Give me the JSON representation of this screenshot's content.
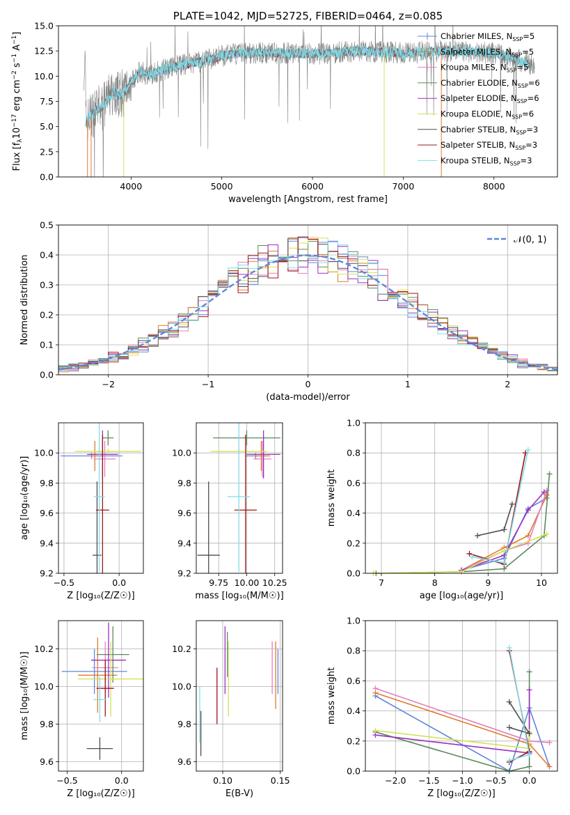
{
  "figure": {
    "title": "PLATE=1042, MJD=52725, FIBERID=0464, z=0.085"
  },
  "series": [
    {
      "name": "Chabrier MILES, N_SSP=5",
      "label_base": "Chabrier MILES, N",
      "label_sub": "SSP",
      "label_tail": "=5",
      "color": "#5f86dc"
    },
    {
      "name": "Salpeter MILES, N_SSP=5",
      "label_base": "Salpeter MILES, N",
      "label_sub": "SSP",
      "label_tail": "=5",
      "color": "#e07a2e"
    },
    {
      "name": "Kroupa MILES, N_SSP=5",
      "label_base": "Kroupa MILES, N",
      "label_sub": "SSP",
      "label_tail": "=5",
      "color": "#e57fbf"
    },
    {
      "name": "Chabrier ELODIE, N_SSP=6",
      "label_base": "Chabrier ELODIE, N",
      "label_sub": "SSP",
      "label_tail": "=6",
      "color": "#5a8a5a"
    },
    {
      "name": "Salpeter ELODIE, N_SSP=6",
      "label_base": "Salpeter ELODIE, N",
      "label_sub": "SSP",
      "label_tail": "=6",
      "color": "#9b2fc0"
    },
    {
      "name": "Kroupa ELODIE, N_SSP=6",
      "label_base": "Kroupa ELODIE, N",
      "label_sub": "SSP",
      "label_tail": "=6",
      "color": "#d4e157"
    },
    {
      "name": "Chabrier STELIB, N_SSP=3",
      "label_base": "Chabrier STELIB, N",
      "label_sub": "SSP",
      "label_tail": "=3",
      "color": "#4d4d4d"
    },
    {
      "name": "Salpeter STELIB, N_SSP=3",
      "label_base": "Salpeter STELIB, N",
      "label_sub": "SSP",
      "label_tail": "=3",
      "color": "#a01515"
    },
    {
      "name": "Kroupa STELIB, N_SSP=3",
      "label_base": "Kroupa STELIB, N",
      "label_sub": "SSP",
      "label_tail": "=3",
      "color": "#7fdde8"
    }
  ],
  "chart_data": [
    {
      "id": "spectrum",
      "type": "line",
      "title": "PLATE=1042, MJD=52725, FIBERID=0464, z=0.085",
      "xlabel": "wavelength [Angstrom, rest frame]",
      "ylabel_parts": {
        "a": "Flux [f",
        "sub": "λ",
        "b": "10",
        "sup1": "−17",
        "c": " erg cm",
        "sup2": "−2",
        "d": " s",
        "sup3": "−1",
        "e": " A",
        "sup4": "−1",
        "f": "]"
      },
      "xlim": [
        3200,
        8700
      ],
      "ylim": [
        0,
        15
      ],
      "xticks": [
        "4000",
        "5000",
        "6000",
        "7000",
        "8000"
      ],
      "yticks": [
        "0.0",
        "2.5",
        "5.0",
        "7.5",
        "10.0",
        "12.5",
        "15.0"
      ],
      "data_color": "#808080",
      "model_color": "#7fdde8",
      "envelope": {
        "x": [
          3500,
          3600,
          3700,
          3800,
          3900,
          4000,
          4100,
          4200,
          4300,
          4500,
          4800,
          5000,
          5200,
          5500,
          6000,
          6500,
          7000,
          7500,
          8000,
          8300,
          8500
        ],
        "y": [
          5.5,
          6.5,
          7.0,
          8.5,
          8.0,
          9.5,
          10.5,
          10.0,
          10.5,
          11.0,
          11.5,
          12.0,
          12.3,
          12.3,
          12.2,
          12.5,
          12.3,
          12.5,
          12.3,
          11.5,
          11.0
        ]
      },
      "legend_position": "upper right"
    },
    {
      "id": "residuals",
      "type": "histogram",
      "xlabel": "(data-model)/error",
      "ylabel": "Normed distribution",
      "xlim": [
        -2.5,
        2.5
      ],
      "ylim": [
        0,
        0.5
      ],
      "xticks": [
        "−2",
        "−1",
        "0",
        "1",
        "2"
      ],
      "yticks": [
        "0.0",
        "0.1",
        "0.2",
        "0.3",
        "0.4",
        "0.5"
      ],
      "bin_width": 0.1,
      "reference_label": "𝒩(0, 1)",
      "reference_color": "#5f86dc",
      "legend_position": "upper right"
    },
    {
      "id": "age-vs-Z",
      "type": "scatter",
      "xlabel": "Z [log₁₀(Z/Z☉)]",
      "ylabel": "age  [log₁₀(age/yr)]",
      "xlim": [
        -0.55,
        0.22
      ],
      "ylim": [
        9.2,
        10.2
      ],
      "xticks": [
        "−0.5",
        "0.0"
      ],
      "yticks": [
        "9.2",
        "9.4",
        "9.6",
        "9.8",
        "10.0"
      ],
      "points": [
        {
          "s": 0,
          "x": -0.25,
          "y": 9.98,
          "xerr": 0.28,
          "yerr": 0.02
        },
        {
          "s": 1,
          "x": -0.22,
          "y": 9.98,
          "xerr": 0.05,
          "yerr": 0.1
        },
        {
          "s": 2,
          "x": -0.13,
          "y": 9.96,
          "xerr": 0.1,
          "yerr": 0.12
        },
        {
          "s": 3,
          "x": -0.1,
          "y": 10.1,
          "xerr": 0.05,
          "yerr": 0.05
        },
        {
          "s": 4,
          "x": -0.15,
          "y": 9.99,
          "xerr": 0.14,
          "yerr": 0.16
        },
        {
          "s": 5,
          "x": -0.1,
          "y": 10.01,
          "xerr": 0.3,
          "yerr": 0.02
        },
        {
          "s": 6,
          "x": -0.2,
          "y": 9.32,
          "xerr": 0.04,
          "yerr": 0.49
        },
        {
          "s": 7,
          "x": -0.15,
          "y": 9.62,
          "xerr": 0.06,
          "yerr": 0.5
        },
        {
          "s": 8,
          "x": -0.18,
          "y": 9.71,
          "xerr": 0.05,
          "yerr": 0.5
        }
      ]
    },
    {
      "id": "age-vs-mass",
      "type": "scatter",
      "xlabel": "mass [log₁₀(M/M☉)]",
      "ylabel": "",
      "xlim": [
        9.55,
        10.32
      ],
      "ylim": [
        9.2,
        10.2
      ],
      "xticks": [
        "9.75",
        "10.00",
        "10.25"
      ],
      "yticks": [
        "9.2",
        "9.4",
        "9.6",
        "9.8",
        "10.0"
      ],
      "points": [
        {
          "s": 0,
          "x": 10.08,
          "y": 9.98,
          "xerr": 0.09,
          "yerr": 0.02
        },
        {
          "s": 1,
          "x": 10.13,
          "y": 9.98,
          "xerr": 0.08,
          "yerr": 0.1
        },
        {
          "s": 2,
          "x": 10.14,
          "y": 9.96,
          "xerr": 0.08,
          "yerr": 0.12
        },
        {
          "s": 3,
          "x": 10.0,
          "y": 10.1,
          "xerr": 0.3,
          "yerr": 0.05
        },
        {
          "s": 4,
          "x": 10.15,
          "y": 9.99,
          "xerr": 0.15,
          "yerr": 0.16
        },
        {
          "s": 5,
          "x": 9.93,
          "y": 10.01,
          "xerr": 0.25,
          "yerr": 0.02
        },
        {
          "s": 6,
          "x": 9.66,
          "y": 9.32,
          "xerr": 0.1,
          "yerr": 0.49
        },
        {
          "s": 7,
          "x": 9.99,
          "y": 9.62,
          "xerr": 0.1,
          "yerr": 0.5
        },
        {
          "s": 8,
          "x": 9.93,
          "y": 9.71,
          "xerr": 0.1,
          "yerr": 0.5
        }
      ]
    },
    {
      "id": "weight-vs-age",
      "type": "line",
      "xlabel": "age  [log₁₀(age/yr)]",
      "ylabel": "mass weight",
      "xlim": [
        6.7,
        10.3
      ],
      "ylim": [
        0,
        1
      ],
      "xticks": [
        "7",
        "8",
        "9",
        "10"
      ],
      "yticks": [
        "0.0",
        "0.2",
        "0.4",
        "0.6",
        "0.8",
        "1.0"
      ],
      "series_points": [
        {
          "s": 0,
          "x": [
            8.5,
            9.3,
            9.75,
            10.1
          ],
          "y": [
            0.02,
            0.1,
            0.43,
            0.5
          ]
        },
        {
          "s": 1,
          "x": [
            8.5,
            9.3,
            9.75,
            10.1
          ],
          "y": [
            0.02,
            0.17,
            0.25,
            0.52
          ]
        },
        {
          "s": 2,
          "x": [
            8.5,
            9.3,
            9.75,
            10.1
          ],
          "y": [
            0.02,
            0.15,
            0.2,
            0.55
          ]
        },
        {
          "s": 3,
          "x": [
            6.9,
            8.5,
            9.3,
            10.05,
            10.15
          ],
          "y": [
            0.0,
            0.01,
            0.03,
            0.25,
            0.66
          ]
        },
        {
          "s": 4,
          "x": [
            8.5,
            9.3,
            9.75,
            10.05
          ],
          "y": [
            0.02,
            0.12,
            0.42,
            0.54
          ]
        },
        {
          "s": 5,
          "x": [
            6.85,
            8.5,
            9.3,
            10.1
          ],
          "y": [
            0.0,
            0.01,
            0.15,
            0.26
          ]
        },
        {
          "s": 6,
          "x": [
            8.8,
            9.3,
            9.45
          ],
          "y": [
            0.25,
            0.29,
            0.46
          ]
        },
        {
          "s": 7,
          "x": [
            8.65,
            9.3,
            9.7
          ],
          "y": [
            0.13,
            0.06,
            0.8
          ]
        },
        {
          "s": 8,
          "x": [
            8.7,
            9.3,
            9.75
          ],
          "y": [
            0.11,
            0.07,
            0.82
          ]
        }
      ]
    },
    {
      "id": "mass-vs-Z",
      "type": "scatter",
      "xlabel": "Z [log₁₀(Z/Z☉)]",
      "ylabel": "mass [log₁₀(M/M☉)]",
      "xlim": [
        -0.58,
        0.2
      ],
      "ylim": [
        9.55,
        10.35
      ],
      "xticks": [
        "−0.5",
        "0.0"
      ],
      "yticks": [
        "9.6",
        "9.8",
        "10.0",
        "10.2"
      ],
      "points": [
        {
          "s": 0,
          "x": -0.25,
          "y": 10.08,
          "xerr": 0.3,
          "yerr": 0.12
        },
        {
          "s": 1,
          "x": -0.22,
          "y": 10.06,
          "xerr": 0.18,
          "yerr": 0.2
        },
        {
          "s": 2,
          "x": -0.15,
          "y": 10.1,
          "xerr": 0.12,
          "yerr": 0.14
        },
        {
          "s": 3,
          "x": -0.08,
          "y": 10.17,
          "xerr": 0.15,
          "yerr": 0.15
        },
        {
          "s": 4,
          "x": -0.12,
          "y": 10.14,
          "xerr": 0.16,
          "yerr": 0.2
        },
        {
          "s": 5,
          "x": -0.1,
          "y": 10.04,
          "xerr": 0.3,
          "yerr": 0.2
        },
        {
          "s": 6,
          "x": -0.2,
          "y": 9.67,
          "xerr": 0.12,
          "yerr": 0.06
        },
        {
          "s": 7,
          "x": -0.15,
          "y": 9.99,
          "xerr": 0.08,
          "yerr": 0.15
        },
        {
          "s": 8,
          "x": -0.2,
          "y": 9.93,
          "xerr": 0.06,
          "yerr": 0.12
        }
      ]
    },
    {
      "id": "mass-vs-ebv",
      "type": "scatter",
      "xlabel": "E(B-V)",
      "ylabel": "",
      "xlim": [
        0.077,
        0.152
      ],
      "ylim": [
        9.55,
        10.35
      ],
      "xticks": [
        "0.10",
        "0.15"
      ],
      "yticks": [
        "9.6",
        "9.8",
        "10.0",
        "10.2"
      ],
      "points": [
        {
          "s": 0,
          "x": 0.148,
          "y": 10.08,
          "xerr": 0.0,
          "yerr": 0.12
        },
        {
          "s": 1,
          "x": 0.146,
          "y": 10.06,
          "xerr": 0.0,
          "yerr": 0.18
        },
        {
          "s": 2,
          "x": 0.143,
          "y": 10.1,
          "xerr": 0.0,
          "yerr": 0.14
        },
        {
          "s": 3,
          "x": 0.104,
          "y": 10.17,
          "xerr": 0.0,
          "yerr": 0.12
        },
        {
          "s": 4,
          "x": 0.102,
          "y": 10.14,
          "xerr": 0.0,
          "yerr": 0.18
        },
        {
          "s": 5,
          "x": 0.105,
          "y": 10.04,
          "xerr": 0.0,
          "yerr": 0.2
        },
        {
          "s": 6,
          "x": 0.081,
          "y": 9.75,
          "xerr": 0.0,
          "yerr": 0.12
        },
        {
          "s": 7,
          "x": 0.095,
          "y": 9.95,
          "xerr": 0.0,
          "yerr": 0.15
        },
        {
          "s": 8,
          "x": 0.08,
          "y": 9.85,
          "xerr": 0.0,
          "yerr": 0.15
        }
      ]
    },
    {
      "id": "weight-vs-Z",
      "type": "line",
      "xlabel": "Z [log₁₀(Z/Z☉)]",
      "ylabel": "mass weight",
      "xlim": [
        -2.45,
        0.42
      ],
      "ylim": [
        0,
        1
      ],
      "xticks": [
        "−2.0",
        "−1.5",
        "−1.0",
        "−0.5",
        "0.0"
      ],
      "yticks": [
        "0.0",
        "0.2",
        "0.4",
        "0.6",
        "0.8",
        "1.0"
      ],
      "series_points": [
        {
          "s": 0,
          "x": [
            -2.3,
            -0.3,
            0.0,
            0.3
          ],
          "y": [
            0.5,
            0.0,
            0.42,
            0.03
          ]
        },
        {
          "s": 1,
          "x": [
            -2.3,
            0.0,
            0.3
          ],
          "y": [
            0.52,
            0.18,
            0.03
          ]
        },
        {
          "s": 2,
          "x": [
            -2.3,
            0.0,
            0.3
          ],
          "y": [
            0.55,
            0.2,
            0.19
          ]
        },
        {
          "s": 3,
          "x": [
            -2.3,
            -0.3,
            0.0,
            0.0
          ],
          "y": [
            0.26,
            0.0,
            0.03,
            0.66
          ]
        },
        {
          "s": 4,
          "x": [
            -2.3,
            0.0,
            0.0
          ],
          "y": [
            0.24,
            0.12,
            0.54
          ]
        },
        {
          "s": 5,
          "x": [
            -2.3,
            0.0,
            0.0
          ],
          "y": [
            0.27,
            0.15,
            0.26
          ]
        },
        {
          "s": 6,
          "x": [
            -0.3,
            0.0,
            -0.3
          ],
          "y": [
            0.29,
            0.25,
            0.46
          ]
        },
        {
          "s": 7,
          "x": [
            -0.3,
            0.0,
            -0.3
          ],
          "y": [
            0.06,
            0.13,
            0.8
          ]
        },
        {
          "s": 8,
          "x": [
            -0.3,
            0.0,
            -0.3
          ],
          "y": [
            0.07,
            0.11,
            0.82
          ]
        }
      ]
    }
  ]
}
